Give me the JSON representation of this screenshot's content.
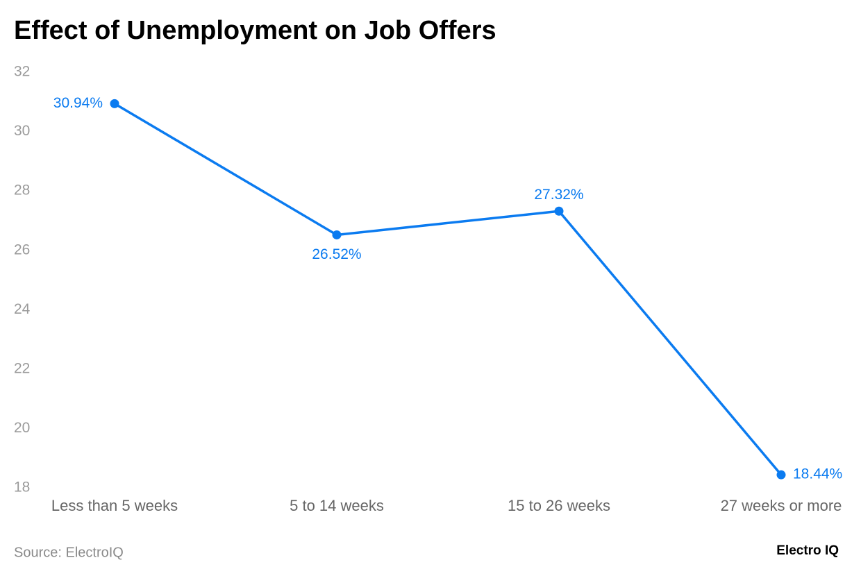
{
  "chart_data": {
    "type": "line",
    "title": "Effect of Unemployment on Job Offers",
    "categories": [
      "Less than 5 weeks",
      "5 to 14 weeks",
      "15 to 26 weeks",
      "27 weeks or more"
    ],
    "series": [
      {
        "name": "Job offers",
        "color": "#0b7bf0",
        "values": [
          30.94,
          26.52,
          27.32,
          18.44
        ],
        "value_labels": [
          "30.94%",
          "26.52%",
          "27.32%",
          "18.44%"
        ]
      }
    ],
    "ylim": [
      18,
      32
    ],
    "yticks": [
      18,
      20,
      22,
      24,
      26,
      28,
      30,
      32
    ],
    "grid": false,
    "source": "Source: ElectroIQ",
    "brand": "Electro IQ"
  }
}
